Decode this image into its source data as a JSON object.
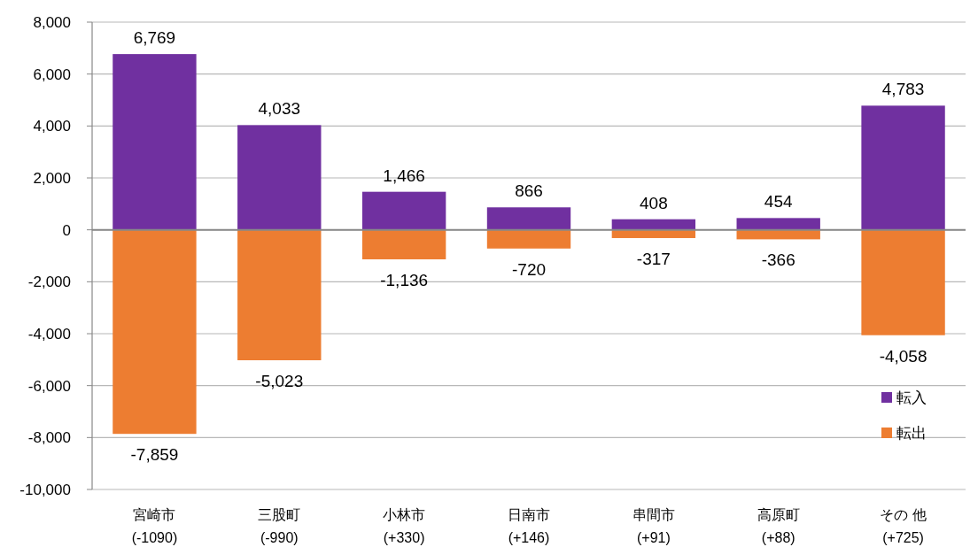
{
  "chart_data": {
    "type": "bar",
    "stacked": true,
    "categories": [
      "宮崎市\n(-1090)",
      "三股町\n(-990)",
      "小林市\n(+330)",
      "日南市\n(+146)",
      "串間市\n(+91)",
      "高原町\n(+88)",
      "その 他\n(+725)"
    ],
    "series": [
      {
        "name": "転入",
        "color": "#7030a0",
        "values": [
          6769,
          4033,
          1466,
          866,
          408,
          454,
          4783
        ],
        "value_labels": [
          "6,769",
          "4,033",
          "1,466",
          "866",
          "408",
          "454",
          "4,783"
        ]
      },
      {
        "name": "転出",
        "color": "#ed7d31",
        "values": [
          -7859,
          -5023,
          -1136,
          -720,
          -317,
          -366,
          -4058
        ],
        "value_labels": [
          "-7,859",
          "-5,023",
          "-1,136",
          "-720",
          "-317",
          "-366",
          "-4,058"
        ]
      }
    ],
    "ylim": [
      -10000,
      8000
    ],
    "yticks": [
      {
        "value": -10000,
        "label": "-10,000"
      },
      {
        "value": -8000,
        "label": "-8,000"
      },
      {
        "value": -6000,
        "label": "-6,000"
      },
      {
        "value": -4000,
        "label": "-4,000"
      },
      {
        "value": -2000,
        "label": "-2,000"
      },
      0,
      {
        "value": 2000,
        "label": "2,000"
      },
      {
        "value": 4000,
        "label": "4,000"
      },
      {
        "value": 6000,
        "label": "6,000"
      },
      {
        "value": 8000,
        "label": "8,000"
      }
    ],
    "grid": "y",
    "legend": "right"
  }
}
